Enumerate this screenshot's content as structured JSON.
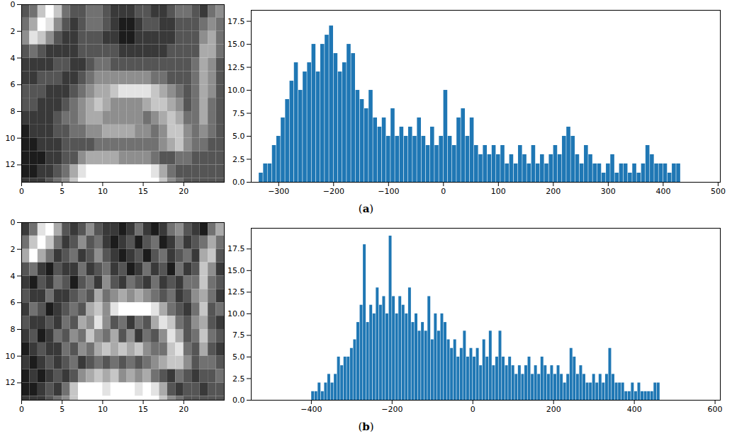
{
  "panel_labels": [
    "(a)",
    "(b)"
  ],
  "chart_data": [
    {
      "type": "heatmap",
      "xlim": [
        0,
        25
      ],
      "ylim": [
        13.3,
        0
      ],
      "xticks": [
        0,
        5,
        10,
        15,
        20
      ],
      "yticks": [
        0,
        2,
        4,
        6,
        8,
        10,
        12
      ],
      "color_range": [
        0,
        9
      ],
      "cells": [
        [
          3,
          4,
          7,
          9,
          7,
          4,
          3,
          3,
          4,
          4,
          3,
          2,
          2,
          2,
          3,
          3,
          2,
          2,
          3,
          4,
          4,
          3,
          2,
          4,
          5
        ],
        [
          4,
          6,
          9,
          8,
          5,
          3,
          2,
          3,
          4,
          4,
          3,
          2,
          1,
          1,
          2,
          3,
          3,
          2,
          2,
          3,
          3,
          3,
          4,
          5,
          4
        ],
        [
          5,
          8,
          7,
          5,
          3,
          2,
          2,
          3,
          3,
          3,
          2,
          2,
          1,
          1,
          2,
          2,
          2,
          2,
          2,
          3,
          3,
          3,
          5,
          6,
          4
        ],
        [
          3,
          4,
          3,
          2,
          2,
          2,
          2,
          3,
          3,
          3,
          3,
          3,
          2,
          2,
          2,
          2,
          2,
          2,
          3,
          3,
          3,
          3,
          6,
          6,
          4
        ],
        [
          2,
          2,
          2,
          2,
          3,
          3,
          2,
          2,
          3,
          4,
          4,
          3,
          3,
          3,
          3,
          3,
          3,
          3,
          3,
          3,
          3,
          4,
          6,
          5,
          3
        ],
        [
          2,
          2,
          3,
          3,
          3,
          2,
          2,
          3,
          4,
          5,
          5,
          5,
          5,
          5,
          5,
          5,
          4,
          4,
          3,
          3,
          3,
          4,
          6,
          5,
          3
        ],
        [
          3,
          3,
          3,
          2,
          2,
          2,
          3,
          4,
          5,
          6,
          6,
          7,
          8,
          8,
          8,
          8,
          7,
          6,
          5,
          4,
          3,
          4,
          6,
          5,
          3
        ],
        [
          3,
          3,
          2,
          2,
          2,
          3,
          4,
          5,
          6,
          7,
          6,
          5,
          5,
          5,
          5,
          6,
          7,
          7,
          6,
          5,
          3,
          4,
          6,
          4,
          3
        ],
        [
          2,
          2,
          2,
          2,
          3,
          4,
          4,
          5,
          6,
          6,
          5,
          5,
          5,
          5,
          5,
          4,
          5,
          6,
          7,
          6,
          4,
          4,
          6,
          4,
          3
        ],
        [
          1,
          2,
          2,
          2,
          3,
          3,
          4,
          4,
          5,
          5,
          6,
          6,
          6,
          6,
          5,
          5,
          4,
          5,
          7,
          7,
          5,
          4,
          5,
          4,
          3
        ],
        [
          1,
          1,
          2,
          2,
          2,
          3,
          3,
          3,
          3,
          4,
          4,
          4,
          4,
          4,
          4,
          4,
          4,
          5,
          6,
          7,
          5,
          4,
          4,
          3,
          3
        ],
        [
          1,
          1,
          1,
          2,
          2,
          3,
          3,
          5,
          6,
          6,
          6,
          6,
          5,
          5,
          5,
          5,
          4,
          3,
          3,
          4,
          4,
          3,
          3,
          3,
          3
        ],
        [
          1,
          1,
          2,
          2,
          3,
          4,
          6,
          8,
          9,
          9,
          9,
          9,
          9,
          9,
          9,
          9,
          8,
          6,
          4,
          3,
          3,
          3,
          3,
          3,
          3
        ],
        [
          2,
          2,
          2,
          3,
          4,
          5,
          7,
          9,
          9,
          9,
          9,
          9,
          9,
          9,
          9,
          9,
          9,
          7,
          5,
          4,
          3,
          3,
          3,
          3,
          3
        ]
      ]
    },
    {
      "type": "histogram",
      "color": "#1f77b4",
      "xlim": [
        -350,
        504
      ],
      "ylim": [
        0,
        18.7
      ],
      "xticks": [
        {
          "value": -300,
          "label": "−300"
        },
        {
          "value": -200,
          "label": "−200"
        },
        {
          "value": -100,
          "label": "−100"
        },
        0,
        100,
        200,
        300,
        400,
        500
      ],
      "yticks": [
        {
          "value": 0,
          "label": "0.0"
        },
        {
          "value": 2.5,
          "label": "2.5"
        },
        {
          "value": 5,
          "label": "5.0"
        },
        {
          "value": 7.5,
          "label": "7.5"
        },
        {
          "value": 10,
          "label": "10.0"
        },
        {
          "value": 12.5,
          "label": "12.5"
        },
        {
          "value": 15,
          "label": "15.0"
        },
        {
          "value": 17.5,
          "label": "17.5"
        }
      ],
      "bins": [
        -336,
        -328,
        -320,
        -312,
        -304,
        -296,
        -288,
        -280,
        -272,
        -264,
        -256,
        -248,
        -240,
        -232,
        -224,
        -216,
        -208,
        -200,
        -192,
        -184,
        -176,
        -168,
        -160,
        -152,
        -144,
        -136,
        -128,
        -120,
        -112,
        -104,
        -96,
        -88,
        -80,
        -72,
        -64,
        -56,
        -48,
        -40,
        -32,
        -24,
        -16,
        -8,
        0,
        8,
        16,
        24,
        32,
        40,
        48,
        56,
        64,
        72,
        80,
        88,
        96,
        104,
        112,
        120,
        128,
        136,
        144,
        152,
        160,
        168,
        176,
        184,
        192,
        200,
        208,
        216,
        224,
        232,
        240,
        248,
        256,
        264,
        272,
        280,
        288,
        296,
        304,
        312,
        320,
        328,
        336,
        344,
        352,
        360,
        368,
        376,
        384,
        392,
        400,
        408,
        416,
        424,
        432
      ],
      "counts": [
        1,
        2,
        2,
        4,
        5,
        7,
        9,
        11,
        13,
        10,
        12,
        13,
        15,
        12,
        15,
        16,
        17,
        14,
        12,
        13,
        15,
        14,
        10,
        9,
        8,
        10,
        7,
        6,
        7,
        5,
        8,
        5,
        6,
        5,
        6,
        5,
        7,
        5,
        4,
        6,
        4,
        5,
        10,
        5,
        4,
        7,
        8,
        5,
        7,
        4,
        3,
        4,
        3,
        4,
        3,
        4,
        2,
        3,
        2,
        4,
        3,
        2,
        4,
        2,
        3,
        2,
        3,
        4,
        3,
        5,
        6,
        5,
        3,
        2,
        4,
        3,
        2,
        2,
        1,
        2,
        3,
        1,
        2,
        2,
        1,
        2,
        1,
        2,
        4,
        3,
        2,
        2,
        2,
        1,
        2,
        2
      ]
    },
    {
      "type": "heatmap",
      "xlim": [
        0,
        25
      ],
      "ylim": [
        13.3,
        0
      ],
      "xticks": [
        0,
        5,
        10,
        15,
        20
      ],
      "yticks": [
        0,
        2,
        4,
        6,
        8,
        10,
        12
      ],
      "color_range": [
        0,
        9
      ],
      "cells": [
        [
          2,
          4,
          8,
          9,
          6,
          3,
          2,
          3,
          5,
          3,
          2,
          2,
          1,
          2,
          4,
          2,
          1,
          2,
          4,
          5,
          3,
          2,
          1,
          4,
          6
        ],
        [
          4,
          7,
          9,
          7,
          4,
          2,
          3,
          5,
          3,
          4,
          2,
          1,
          2,
          3,
          1,
          3,
          4,
          1,
          2,
          4,
          2,
          3,
          4,
          6,
          4
        ],
        [
          6,
          9,
          6,
          4,
          2,
          3,
          4,
          2,
          3,
          5,
          3,
          2,
          1,
          2,
          3,
          1,
          3,
          4,
          2,
          3,
          4,
          2,
          6,
          7,
          3
        ],
        [
          3,
          4,
          2,
          1,
          3,
          2,
          2,
          4,
          2,
          3,
          4,
          2,
          3,
          1,
          2,
          4,
          2,
          3,
          1,
          4,
          2,
          3,
          7,
          5,
          2
        ],
        [
          2,
          1,
          3,
          2,
          4,
          3,
          1,
          3,
          4,
          2,
          5,
          3,
          2,
          4,
          3,
          2,
          4,
          2,
          3,
          2,
          4,
          4,
          7,
          4,
          3
        ],
        [
          3,
          2,
          2,
          4,
          2,
          2,
          3,
          4,
          3,
          6,
          4,
          5,
          6,
          5,
          6,
          5,
          4,
          3,
          4,
          2,
          3,
          5,
          6,
          4,
          2
        ],
        [
          2,
          4,
          3,
          1,
          2,
          3,
          4,
          3,
          6,
          7,
          5,
          8,
          9,
          9,
          9,
          9,
          8,
          6,
          4,
          3,
          2,
          4,
          7,
          3,
          4
        ],
        [
          3,
          2,
          2,
          3,
          2,
          4,
          3,
          6,
          5,
          8,
          5,
          3,
          4,
          2,
          4,
          3,
          6,
          8,
          7,
          4,
          3,
          5,
          6,
          3,
          2
        ],
        [
          2,
          3,
          1,
          2,
          4,
          3,
          5,
          4,
          7,
          5,
          4,
          6,
          3,
          5,
          2,
          4,
          3,
          5,
          8,
          6,
          3,
          4,
          7,
          4,
          3
        ],
        [
          1,
          2,
          3,
          2,
          2,
          4,
          3,
          5,
          4,
          6,
          7,
          6,
          7,
          6,
          7,
          5,
          4,
          4,
          7,
          8,
          4,
          3,
          6,
          3,
          2
        ],
        [
          2,
          1,
          2,
          3,
          2,
          3,
          4,
          2,
          3,
          4,
          3,
          4,
          3,
          4,
          3,
          4,
          5,
          6,
          7,
          7,
          5,
          3,
          4,
          4,
          3
        ],
        [
          1,
          2,
          1,
          2,
          3,
          2,
          3,
          5,
          6,
          7,
          6,
          7,
          5,
          6,
          5,
          6,
          4,
          3,
          2,
          4,
          3,
          2,
          3,
          3,
          4
        ],
        [
          1,
          1,
          2,
          3,
          2,
          4,
          7,
          9,
          9,
          9,
          8,
          9,
          9,
          9,
          8,
          9,
          8,
          6,
          3,
          2,
          3,
          3,
          2,
          3,
          3
        ],
        [
          2,
          2,
          2,
          3,
          4,
          5,
          7,
          9,
          9,
          9,
          9,
          9,
          9,
          9,
          9,
          9,
          9,
          7,
          5,
          4,
          3,
          3,
          3,
          3,
          3
        ]
      ]
    },
    {
      "type": "histogram",
      "color": "#1f77b4",
      "xlim": [
        -549,
        613
      ],
      "ylim": [
        0,
        19.9
      ],
      "xticks": [
        {
          "value": -400,
          "label": "−400"
        },
        {
          "value": -200,
          "label": "−200"
        },
        0,
        200,
        400,
        600
      ],
      "yticks": [
        {
          "value": 0,
          "label": "0.0"
        },
        {
          "value": 2.5,
          "label": "2.5"
        },
        {
          "value": 5,
          "label": "5.0"
        },
        {
          "value": 7.5,
          "label": "7.5"
        },
        {
          "value": 10,
          "label": "10.0"
        },
        {
          "value": 12.5,
          "label": "12.5"
        },
        {
          "value": 15,
          "label": "15.0"
        },
        {
          "value": 17.5,
          "label": "17.5"
        }
      ],
      "bins": [
        -400,
        -392,
        -384,
        -376,
        -368,
        -360,
        -352,
        -344,
        -336,
        -328,
        -320,
        -312,
        -304,
        -296,
        -288,
        -280,
        -272,
        -264,
        -256,
        -248,
        -240,
        -232,
        -224,
        -216,
        -208,
        -200,
        -192,
        -184,
        -176,
        -168,
        -160,
        -152,
        -144,
        -136,
        -128,
        -120,
        -112,
        -104,
        -96,
        -88,
        -80,
        -72,
        -64,
        -56,
        -48,
        -40,
        -32,
        -24,
        -16,
        -8,
        0,
        8,
        16,
        24,
        32,
        40,
        48,
        56,
        64,
        72,
        80,
        88,
        96,
        104,
        112,
        120,
        128,
        136,
        144,
        152,
        160,
        168,
        176,
        184,
        192,
        200,
        208,
        216,
        224,
        232,
        240,
        248,
        256,
        264,
        272,
        280,
        288,
        296,
        304,
        312,
        320,
        328,
        336,
        344,
        352,
        360,
        368,
        376,
        384,
        392,
        400,
        408,
        416,
        424,
        432,
        440,
        448,
        456,
        464
      ],
      "counts": [
        1,
        1,
        2,
        1,
        2,
        3,
        2,
        3,
        5,
        4,
        5,
        5,
        6,
        7,
        9,
        11,
        18,
        9,
        11,
        10,
        13,
        11,
        12,
        10,
        19,
        12,
        10,
        12,
        11,
        10,
        13,
        9,
        10,
        8,
        9,
        8,
        12,
        7,
        10,
        8,
        10,
        9,
        7,
        6,
        7,
        5,
        6,
        8,
        5,
        6,
        5,
        6,
        4,
        7,
        5,
        8,
        4,
        5,
        8,
        5,
        4,
        5,
        4,
        3,
        4,
        3,
        4,
        5,
        3,
        4,
        3,
        5,
        4,
        3,
        4,
        3,
        4,
        3,
        2,
        3,
        6,
        5,
        3,
        4,
        3,
        2,
        2,
        3,
        2,
        3,
        2,
        3,
        6,
        3,
        2,
        2,
        2,
        1,
        1,
        2,
        1,
        2,
        1,
        1,
        1,
        1,
        2,
        2
      ]
    }
  ]
}
